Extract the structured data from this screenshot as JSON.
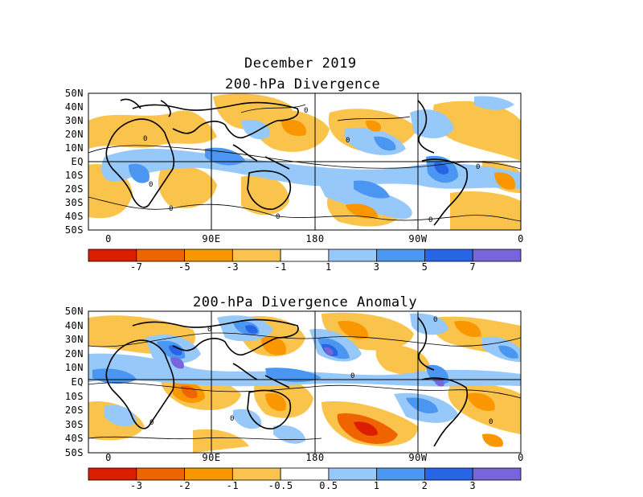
{
  "figure": {
    "main_title": "December 2019",
    "top_panel_title": "200-hPa Divergence",
    "bottom_panel_title": "200-hPa Divergence Anomaly"
  },
  "lat_labels": [
    "50N",
    "40N",
    "30N",
    "20N",
    "10N",
    "EQ",
    "10S",
    "20S",
    "30S",
    "40S",
    "50S"
  ],
  "lon_labels": [
    "0",
    "90E",
    "180",
    "90W",
    "0"
  ],
  "top_colorbar": {
    "labels": [
      "-7",
      "-5",
      "-3",
      "-1",
      "1",
      "3",
      "5",
      "7"
    ],
    "colors": [
      "#dc1e00",
      "#f06400",
      "#fa9600",
      "#fac34b",
      "#ffffff",
      "#96c8fa",
      "#4b96f0",
      "#2864e6",
      "#7864dc"
    ]
  },
  "bottom_colorbar": {
    "labels": [
      "-3",
      "-2",
      "-1",
      "-0.5",
      "0.5",
      "1",
      "2",
      "3"
    ],
    "colors": [
      "#dc1e00",
      "#f06400",
      "#fa9600",
      "#fac34b",
      "#ffffff",
      "#96c8fa",
      "#4b96f0",
      "#2864e6",
      "#7864dc"
    ]
  },
  "contour_label": "0"
}
